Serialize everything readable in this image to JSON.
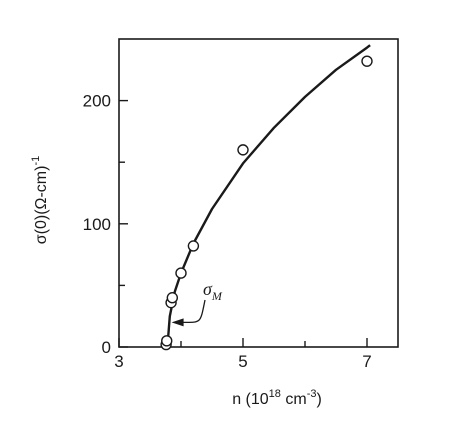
{
  "chart_data": {
    "type": "scatter",
    "xlabel": "n (10",
    "xlabel_exp": "18",
    "xlabel_unit": " cm",
    "xlabel_unit_exp": "-3",
    "xlabel_close": ")",
    "ylabel": "σ(0)(Ω-cm)",
    "ylabel_exp": "-1",
    "xlim": [
      3,
      7.5
    ],
    "ylim": [
      0,
      250
    ],
    "x_ticks": [
      "3",
      "5",
      "7"
    ],
    "y_ticks": [
      "0",
      "100",
      "200"
    ],
    "grid": false,
    "series": [
      {
        "kind": "points",
        "marker": "open-circle",
        "x": [
          3.76,
          3.77,
          3.84,
          3.86,
          4.0,
          4.2,
          5.0,
          7.0
        ],
        "y": [
          2,
          5,
          36,
          40,
          60,
          82,
          160,
          232
        ]
      },
      {
        "kind": "fit-line",
        "x": [
          3.78,
          3.82,
          3.9,
          4.0,
          4.2,
          4.5,
          5.0,
          5.5,
          6.0,
          6.5,
          7.0,
          7.05
        ],
        "y": [
          0,
          25,
          45,
          60,
          84,
          112,
          149,
          178,
          203,
          225,
          243,
          245
        ]
      }
    ],
    "annotation": {
      "symbol": "σ",
      "subscript": "M",
      "arrow_to_x": 3.8,
      "arrow_to_y": 20
    }
  }
}
